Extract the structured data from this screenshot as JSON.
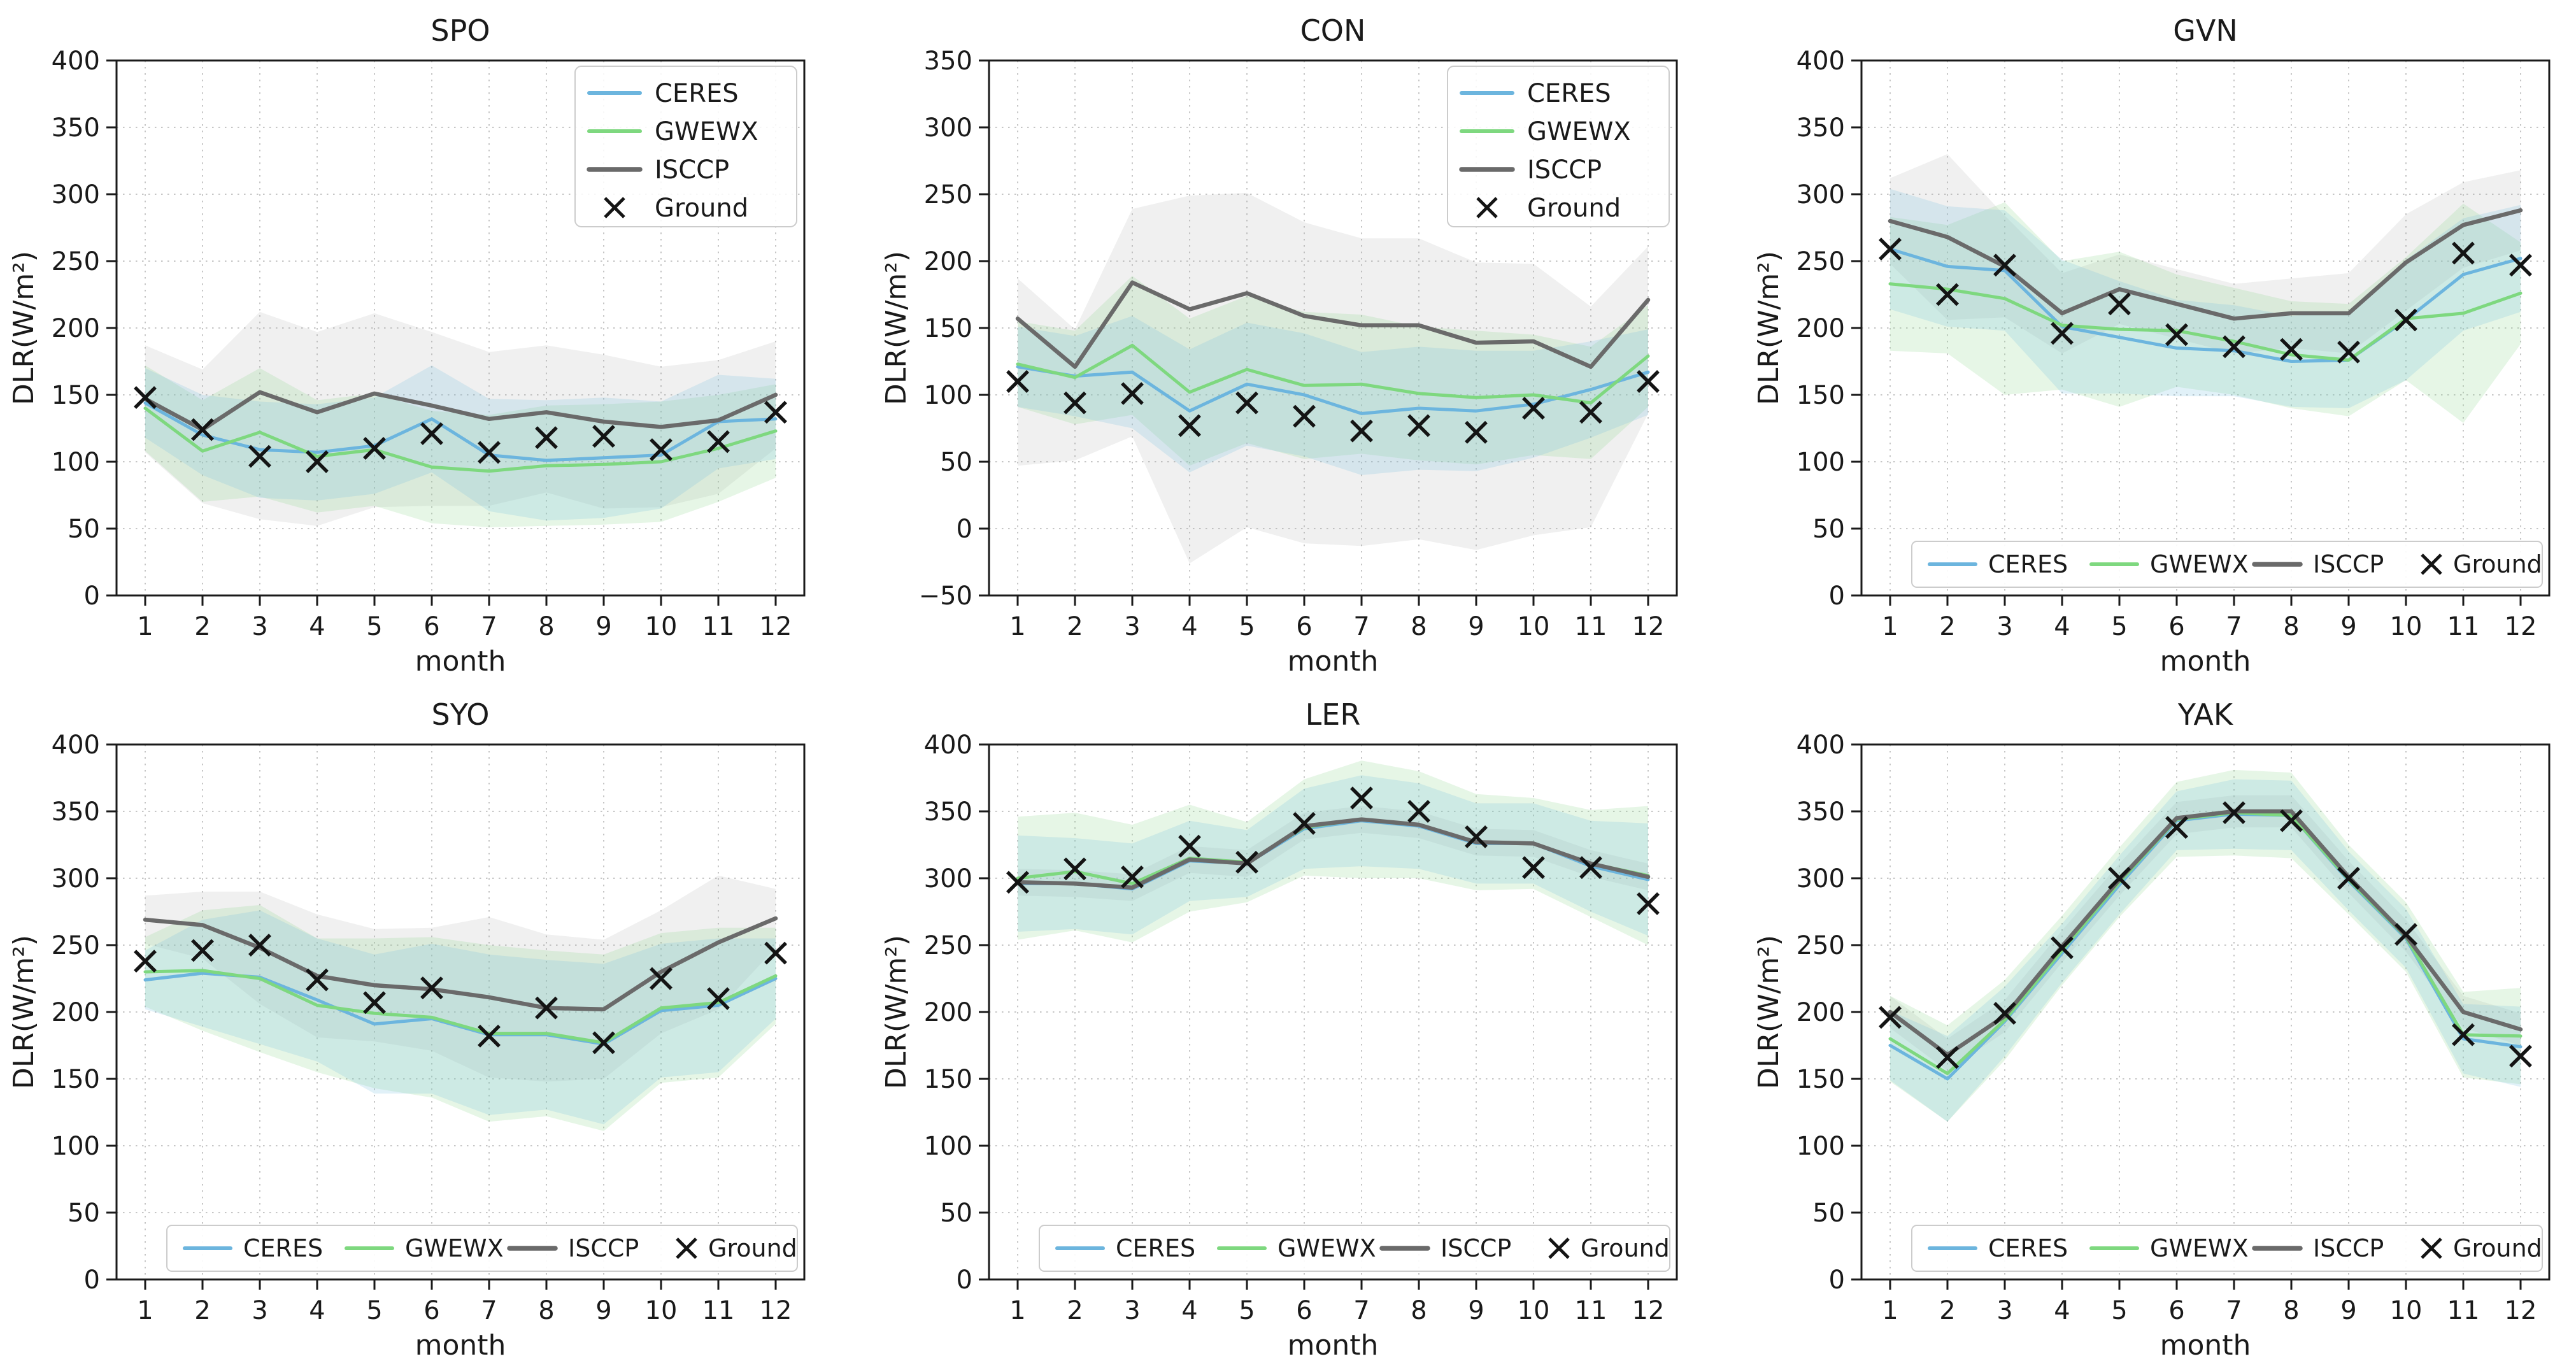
{
  "figure": {
    "xlabel": "month",
    "ylabel": "DLR(W/m²)",
    "legend_entries": [
      "CERES",
      "GWEWX",
      "ISCCP",
      "Ground"
    ],
    "colors": {
      "ceres": "#6cb5de",
      "gwewx": "#7ed87f",
      "isccp": "#6a6a6a",
      "ground": "#141414",
      "ceres_band": "rgba(120,190,225,0.22)",
      "gwewx_band": "rgba(140,215,140,0.22)",
      "isccp_band": "rgba(160,160,160,0.16)",
      "grid": "#c6c6c6",
      "spine": "#1a1a1a"
    }
  },
  "chart_data": [
    {
      "type": "line",
      "title": "SPO",
      "xlabel": "month",
      "ylabel": "DLR(W/m²)",
      "x": [
        1,
        2,
        3,
        4,
        5,
        6,
        7,
        8,
        9,
        10,
        11,
        12
      ],
      "ylim": [
        0,
        400
      ],
      "ytick_step": 50,
      "grid": true,
      "legend_position": "upper right",
      "series": [
        {
          "name": "CERES",
          "values": [
            144,
            120,
            109,
            107,
            112,
            132,
            105,
            101,
            103,
            105,
            130,
            132
          ],
          "band_half": [
            26,
            30,
            36,
            36,
            36,
            40,
            42,
            45,
            45,
            40,
            35,
            30
          ]
        },
        {
          "name": "GWEWX",
          "values": [
            140,
            108,
            122,
            104,
            109,
            96,
            93,
            97,
            98,
            100,
            110,
            123
          ],
          "band_half": [
            32,
            38,
            48,
            42,
            42,
            42,
            42,
            45,
            45,
            45,
            40,
            35
          ]
        },
        {
          "name": "ISCCP",
          "values": [
            147,
            124,
            152,
            137,
            151,
            142,
            132,
            137,
            130,
            126,
            131,
            150
          ],
          "band_low": [
            40,
            55,
            95,
            85,
            85,
            75,
            65,
            60,
            65,
            60,
            55,
            40
          ],
          "band_high": [
            40,
            45,
            60,
            60,
            60,
            55,
            50,
            50,
            50,
            45,
            45,
            40
          ]
        },
        {
          "name": "Ground",
          "marker": "x",
          "values": [
            148,
            124,
            104,
            100,
            110,
            121,
            107,
            118,
            119,
            109,
            115,
            137
          ]
        }
      ]
    },
    {
      "type": "line",
      "title": "CON",
      "xlabel": "month",
      "ylabel": "DLR(W/m²)",
      "x": [
        1,
        2,
        3,
        4,
        5,
        6,
        7,
        8,
        9,
        10,
        11,
        12
      ],
      "ylim": [
        -50,
        350
      ],
      "ytick_step": 50,
      "grid": true,
      "legend_position": "upper right",
      "series": [
        {
          "name": "CERES",
          "values": [
            121,
            114,
            117,
            88,
            108,
            100,
            86,
            90,
            88,
            93,
            104,
            117
          ],
          "band_half": [
            30,
            30,
            42,
            46,
            46,
            46,
            46,
            46,
            45,
            40,
            36,
            32
          ]
        },
        {
          "name": "GWEWX",
          "values": [
            123,
            113,
            137,
            102,
            119,
            107,
            108,
            101,
            98,
            100,
            94,
            129
          ],
          "band_half": [
            32,
            35,
            52,
            55,
            55,
            55,
            52,
            50,
            50,
            45,
            42,
            38
          ]
        },
        {
          "name": "ISCCP",
          "values": [
            157,
            121,
            184,
            164,
            176,
            159,
            152,
            152,
            139,
            140,
            121,
            171
          ],
          "band_low": [
            110,
            70,
            115,
            190,
            175,
            170,
            165,
            160,
            155,
            145,
            120,
            85
          ],
          "band_high": [
            30,
            28,
            55,
            85,
            75,
            70,
            65,
            65,
            60,
            58,
            45,
            40
          ]
        },
        {
          "name": "Ground",
          "marker": "x",
          "values": [
            110,
            94,
            101,
            77,
            94,
            84,
            73,
            77,
            72,
            90,
            87,
            110
          ]
        }
      ]
    },
    {
      "type": "line",
      "title": "GVN",
      "xlabel": "month",
      "ylabel": "DLR(W/m²)",
      "x": [
        1,
        2,
        3,
        4,
        5,
        6,
        7,
        8,
        9,
        10,
        11,
        12
      ],
      "ylim": [
        0,
        400
      ],
      "ytick_step": 50,
      "grid": true,
      "legend_position": "lower center",
      "series": [
        {
          "name": "CERES",
          "values": [
            259,
            246,
            243,
            201,
            193,
            185,
            183,
            175,
            176,
            206,
            240,
            252
          ],
          "band_half": [
            45,
            45,
            45,
            50,
            42,
            36,
            34,
            34,
            36,
            45,
            42,
            40
          ]
        },
        {
          "name": "GWEWX",
          "values": [
            233,
            229,
            222,
            202,
            199,
            198,
            190,
            180,
            176,
            207,
            211,
            226
          ],
          "band_half": [
            50,
            48,
            72,
            48,
            58,
            42,
            40,
            40,
            42,
            46,
            82,
            38
          ]
        },
        {
          "name": "ISCCP",
          "values": [
            280,
            268,
            246,
            211,
            229,
            218,
            207,
            211,
            211,
            249,
            277,
            288
          ],
          "band_half": [
            32,
            62,
            38,
            30,
            26,
            26,
            26,
            26,
            30,
            36,
            32,
            30
          ]
        },
        {
          "name": "Ground",
          "marker": "x",
          "values": [
            259,
            225,
            247,
            196,
            218,
            195,
            186,
            184,
            182,
            206,
            256,
            247
          ]
        }
      ]
    },
    {
      "type": "line",
      "title": "SYO",
      "xlabel": "month",
      "ylabel": "DLR(W/m²)",
      "x": [
        1,
        2,
        3,
        4,
        5,
        6,
        7,
        8,
        9,
        10,
        11,
        12
      ],
      "ylim": [
        0,
        400
      ],
      "ytick_step": 50,
      "grid": true,
      "legend_position": "lower center",
      "series": [
        {
          "name": "CERES",
          "values": [
            224,
            229,
            226,
            209,
            191,
            195,
            183,
            183,
            176,
            201,
            205,
            225
          ],
          "band_half": [
            22,
            40,
            50,
            46,
            52,
            56,
            60,
            56,
            60,
            50,
            50,
            30
          ]
        },
        {
          "name": "GWEWX",
          "values": [
            230,
            231,
            225,
            205,
            199,
            196,
            184,
            184,
            177,
            203,
            207,
            227
          ],
          "band_half": [
            26,
            45,
            55,
            50,
            56,
            60,
            66,
            62,
            66,
            56,
            56,
            36
          ]
        },
        {
          "name": "ISCCP",
          "values": [
            269,
            265,
            248,
            227,
            220,
            217,
            211,
            203,
            202,
            230,
            252,
            270
          ],
          "band_half": [
            18,
            25,
            42,
            46,
            42,
            46,
            60,
            55,
            52,
            46,
            50,
            22
          ]
        },
        {
          "name": "Ground",
          "marker": "x",
          "values": [
            238,
            246,
            250,
            224,
            207,
            218,
            182,
            203,
            177,
            225,
            210,
            244
          ]
        }
      ]
    },
    {
      "type": "line",
      "title": "LER",
      "xlabel": "month",
      "ylabel": "DLR(W/m²)",
      "x": [
        1,
        2,
        3,
        4,
        5,
        6,
        7,
        8,
        9,
        10,
        11,
        12
      ],
      "ylim": [
        0,
        400
      ],
      "ytick_step": 50,
      "grid": true,
      "legend_position": "lower center",
      "series": [
        {
          "name": "CERES",
          "values": [
            296,
            296,
            292,
            313,
            311,
            337,
            343,
            339,
            326,
            326,
            309,
            299
          ],
          "band_half": [
            36,
            34,
            34,
            30,
            25,
            30,
            34,
            32,
            30,
            30,
            34,
            42
          ]
        },
        {
          "name": "GWEWX",
          "values": [
            300,
            305,
            296,
            315,
            312,
            338,
            344,
            340,
            327,
            326,
            311,
            302
          ],
          "band_half": [
            46,
            44,
            44,
            40,
            30,
            36,
            44,
            40,
            36,
            34,
            40,
            52
          ]
        },
        {
          "name": "ISCCP",
          "values": [
            297,
            296,
            293,
            314,
            311,
            339,
            344,
            340,
            327,
            326,
            311,
            301
          ],
          "band_half": [
            10,
            10,
            10,
            10,
            10,
            10,
            10,
            10,
            10,
            10,
            10,
            10
          ]
        },
        {
          "name": "Ground",
          "marker": "x",
          "values": [
            297,
            307,
            301,
            324,
            312,
            341,
            360,
            350,
            331,
            308,
            308,
            281
          ]
        }
      ]
    },
    {
      "type": "line",
      "title": "YAK",
      "xlabel": "month",
      "ylabel": "DLR(W/m²)",
      "x": [
        1,
        2,
        3,
        4,
        5,
        6,
        7,
        8,
        9,
        10,
        11,
        12
      ],
      "ylim": [
        0,
        400
      ],
      "ytick_step": 50,
      "grid": true,
      "legend_position": "lower center",
      "series": [
        {
          "name": "CERES",
          "values": [
            175,
            150,
            193,
            244,
            295,
            343,
            348,
            347,
            298,
            255,
            180,
            174
          ],
          "band_half": [
            26,
            32,
            26,
            22,
            22,
            22,
            26,
            26,
            22,
            22,
            26,
            30
          ]
        },
        {
          "name": "GWEWX",
          "values": [
            180,
            154,
            194,
            246,
            297,
            344,
            349,
            347,
            299,
            256,
            183,
            182
          ],
          "band_half": [
            32,
            36,
            30,
            26,
            26,
            28,
            32,
            32,
            26,
            26,
            32,
            36
          ]
        },
        {
          "name": "ISCCP",
          "values": [
            200,
            168,
            197,
            249,
            299,
            345,
            350,
            350,
            301,
            257,
            200,
            187
          ],
          "band_half": [
            12,
            12,
            12,
            12,
            12,
            12,
            12,
            12,
            12,
            12,
            12,
            12
          ]
        },
        {
          "name": "Ground",
          "marker": "x",
          "values": [
            196,
            166,
            199,
            248,
            300,
            338,
            349,
            343,
            300,
            258,
            183,
            167
          ]
        }
      ]
    }
  ]
}
